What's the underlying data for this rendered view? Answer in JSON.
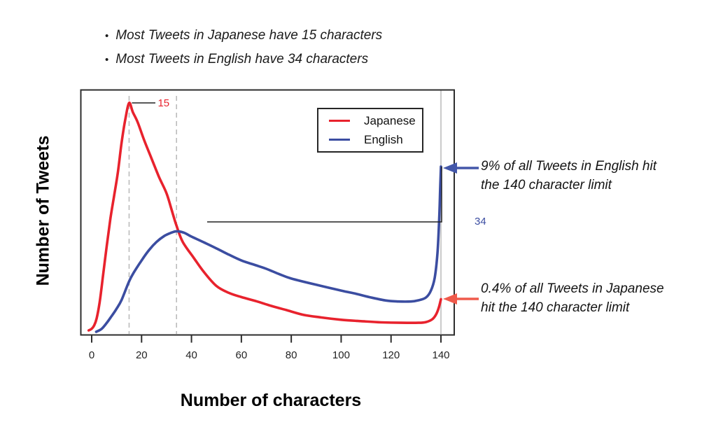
{
  "intro": {
    "bullet_char": "•",
    "items": [
      "Most Tweets in Japanese have 15 characters",
      "Most Tweets in English have 34 characters"
    ]
  },
  "chart_data": {
    "type": "line",
    "title": "",
    "xlabel": "Number of characters",
    "ylabel": "Number of Tweets",
    "x_axis": {
      "ticks": [
        0,
        20,
        40,
        60,
        80,
        100,
        120,
        140
      ],
      "range": [
        -4,
        145
      ]
    },
    "y_axis": {
      "unit": "relative number of tweets (axis unlabeled)",
      "range": [
        0,
        105
      ]
    },
    "grid": false,
    "legend": {
      "position": "top-right",
      "entries": [
        "Japanese",
        "English"
      ]
    },
    "limit_line_x": 140,
    "series": [
      {
        "name": "Japanese",
        "color": "#e8222d",
        "peak_x": 15,
        "peak_label": "15",
        "limit_share_label": "0.4%",
        "points": [
          [
            -1.2,
            1.8
          ],
          [
            0,
            2.5
          ],
          [
            1,
            4
          ],
          [
            2,
            7
          ],
          [
            3.2,
            14
          ],
          [
            4.5,
            25
          ],
          [
            6,
            38
          ],
          [
            7.5,
            50
          ],
          [
            9,
            60
          ],
          [
            10.5,
            70
          ],
          [
            12,
            83
          ],
          [
            13.5,
            93
          ],
          [
            15,
            100
          ],
          [
            16.5,
            96
          ],
          [
            18.5,
            91.5
          ],
          [
            21,
            84
          ],
          [
            24,
            76
          ],
          [
            27,
            68
          ],
          [
            30,
            61
          ],
          [
            32,
            54
          ],
          [
            34,
            47
          ],
          [
            36.5,
            40
          ],
          [
            41,
            33
          ],
          [
            45,
            27
          ],
          [
            50,
            21
          ],
          [
            55,
            18
          ],
          [
            60,
            16.2
          ],
          [
            66,
            14.4
          ],
          [
            72,
            12.4
          ],
          [
            78,
            10.6
          ],
          [
            85,
            8.5
          ],
          [
            92,
            7.4
          ],
          [
            100,
            6.4
          ],
          [
            108,
            5.8
          ],
          [
            116,
            5.3
          ],
          [
            124,
            5.1
          ],
          [
            131,
            5.1
          ],
          [
            134,
            5.4
          ],
          [
            136.5,
            6.6
          ],
          [
            138,
            8.6
          ],
          [
            139.2,
            11.8
          ],
          [
            140,
            15.3
          ]
        ]
      },
      {
        "name": "English",
        "color": "#3b4da1",
        "peak_x": 34,
        "peak_label": "34",
        "limit_share_label": "9%",
        "points": [
          [
            1.8,
            1.2
          ],
          [
            4,
            2.5
          ],
          [
            6,
            5
          ],
          [
            8,
            8
          ],
          [
            10,
            11.2
          ],
          [
            12,
            15
          ],
          [
            15,
            23
          ],
          [
            17,
            27
          ],
          [
            20,
            32
          ],
          [
            23,
            36.5
          ],
          [
            26,
            40
          ],
          [
            29,
            42.5
          ],
          [
            31.5,
            43.8
          ],
          [
            34,
            44.6
          ],
          [
            37,
            44
          ],
          [
            40,
            42.3
          ],
          [
            45,
            39.8
          ],
          [
            50,
            37.2
          ],
          [
            55,
            34.5
          ],
          [
            60,
            32
          ],
          [
            65,
            30.2
          ],
          [
            70,
            28.4
          ],
          [
            75,
            26.2
          ],
          [
            80,
            24.2
          ],
          [
            90,
            21.5
          ],
          [
            100,
            19
          ],
          [
            106,
            17.6
          ],
          [
            112,
            16
          ],
          [
            118,
            14.7
          ],
          [
            123,
            14.3
          ],
          [
            128,
            14.3
          ],
          [
            131,
            14.8
          ],
          [
            134,
            16
          ],
          [
            136,
            19
          ],
          [
            137.5,
            24.5
          ],
          [
            138.6,
            35
          ],
          [
            139.3,
            50
          ],
          [
            139.7,
            63
          ],
          [
            140,
            72.5
          ]
        ]
      }
    ]
  },
  "annotations": {
    "english_limit": {
      "text": "9% of all Tweets in English hit\nthe 140 character limit",
      "arrow_color": "#4357a9"
    },
    "japanese_limit": {
      "text": "0.4% of all Tweets in Japanese\nhit the 140 character limit",
      "arrow_color": "#ef5a4b"
    }
  },
  "colors": {
    "dashed_guide": "#bcbcbc",
    "limit_line": "#cdcdcd",
    "axis": "#2d2d2d",
    "connector": "#222222"
  }
}
